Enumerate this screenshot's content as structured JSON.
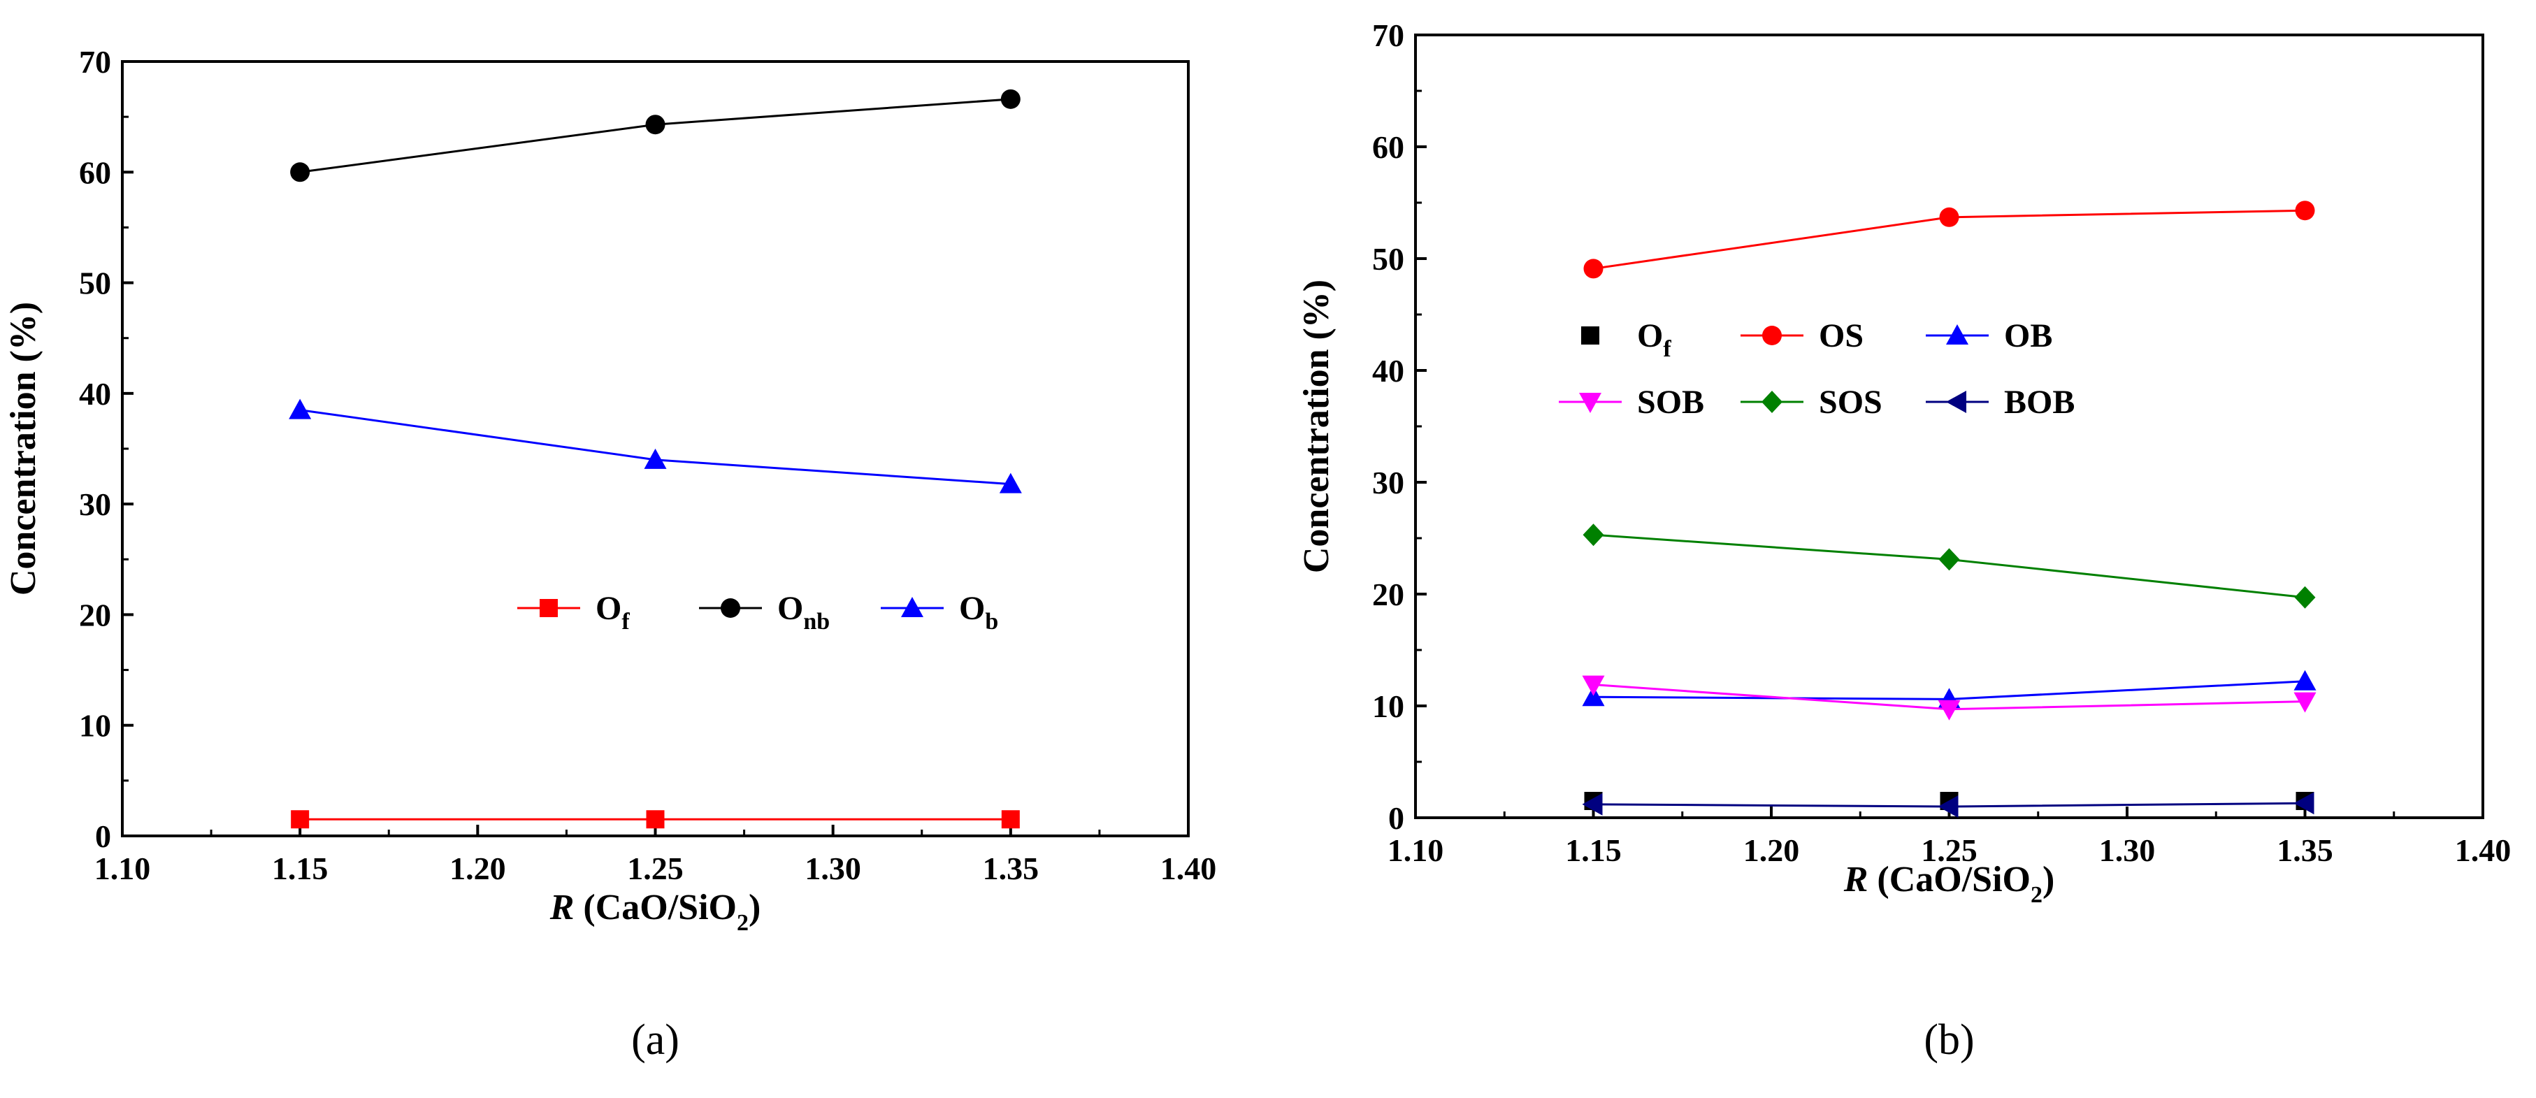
{
  "chart_data": [
    {
      "type": "line",
      "panel_label": "(a)",
      "xlabel": {
        "italic": "R",
        "main": " (CaO/SiO",
        "sub": "2",
        "close": ")"
      },
      "ylabel": "Concentration (%)",
      "xlim": [
        1.1,
        1.4
      ],
      "ylim": [
        0,
        70
      ],
      "xticks": [
        "1.10",
        "1.15",
        "1.20",
        "1.25",
        "1.30",
        "1.35",
        "1.40"
      ],
      "yticks": [
        "0",
        "10",
        "20",
        "30",
        "40",
        "50",
        "60",
        "70"
      ],
      "x": [
        1.15,
        1.25,
        1.35
      ],
      "legend": {
        "placement": "center-right",
        "columns": 3
      },
      "series": [
        {
          "name": "O",
          "sub": "f",
          "color": "#ff0000",
          "marker": "square",
          "values": [
            1.5,
            1.5,
            1.5
          ]
        },
        {
          "name": "O",
          "sub": "nb",
          "color": "#000000",
          "marker": "circle",
          "values": [
            60.0,
            64.3,
            66.6
          ]
        },
        {
          "name": "O",
          "sub": "b",
          "color": "#0000ff",
          "marker": "triangle-up",
          "values": [
            38.5,
            34.0,
            31.8
          ]
        }
      ]
    },
    {
      "type": "line",
      "panel_label": "(b)",
      "xlabel": {
        "italic": "R",
        "main": " (CaO/SiO",
        "sub": "2",
        "close": ")"
      },
      "ylabel": "Concentration (%)",
      "xlim": [
        1.1,
        1.4
      ],
      "ylim": [
        0,
        70
      ],
      "xticks": [
        "1.10",
        "1.15",
        "1.20",
        "1.25",
        "1.30",
        "1.35",
        "1.40"
      ],
      "yticks": [
        "0",
        "10",
        "20",
        "30",
        "40",
        "50",
        "60",
        "70"
      ],
      "x": [
        1.15,
        1.25,
        1.35
      ],
      "legend": {
        "placement": "upper-left",
        "columns": 3
      },
      "series": [
        {
          "name": "O",
          "sub": "f",
          "color": "#000000",
          "marker": "square",
          "line": false,
          "values": [
            1.5,
            1.5,
            1.5
          ]
        },
        {
          "name": "OS",
          "sub": "",
          "color": "#ff0000",
          "marker": "circle",
          "values": [
            49.1,
            53.7,
            54.3
          ]
        },
        {
          "name": "OB",
          "sub": "",
          "color": "#0000ff",
          "marker": "triangle-up",
          "values": [
            10.8,
            10.6,
            12.2
          ]
        },
        {
          "name": "SOB",
          "sub": "",
          "color": "#ff00ff",
          "marker": "triangle-down",
          "values": [
            11.9,
            9.7,
            10.4
          ]
        },
        {
          "name": "SOS",
          "sub": "",
          "color": "#008000",
          "marker": "diamond",
          "values": [
            25.3,
            23.1,
            19.7
          ]
        },
        {
          "name": "BOB",
          "sub": "",
          "color": "#000080",
          "marker": "triangle-left",
          "values": [
            1.2,
            1.0,
            1.3
          ]
        }
      ]
    }
  ]
}
